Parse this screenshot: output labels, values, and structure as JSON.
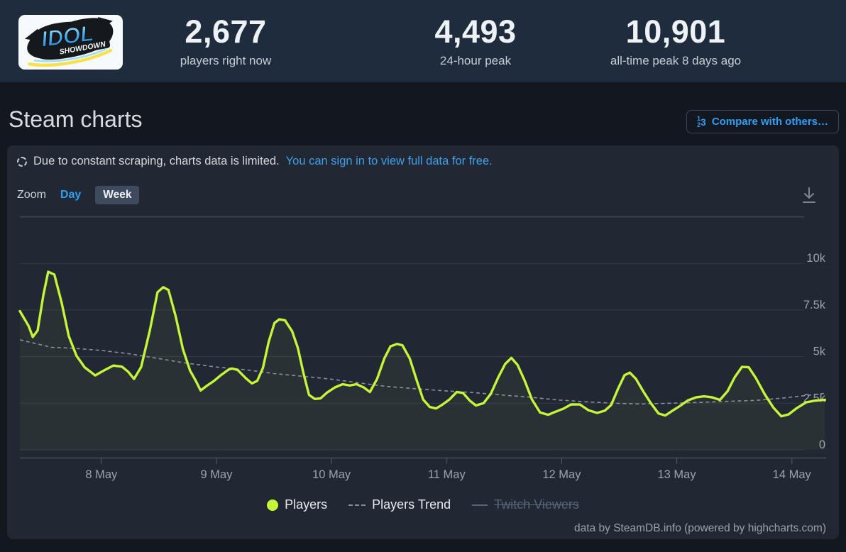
{
  "header": {
    "logo_line1": "IDOL",
    "logo_line2": "SHOWDOWN",
    "stats": [
      {
        "value": "2,677",
        "label": "players right now"
      },
      {
        "value": "4,493",
        "label": "24-hour peak"
      },
      {
        "value": "10,901",
        "label": "all-time peak 8 days ago"
      }
    ]
  },
  "page": {
    "title": "Steam charts",
    "compare_button": "Compare with others…",
    "compare_icon": [
      "1",
      "2",
      "3"
    ]
  },
  "notice": {
    "text": "Due to constant scraping, charts data is limited.",
    "link": "You can sign in to view full data for free."
  },
  "controls": {
    "zoom_label": "Zoom",
    "day": "Day",
    "week": "Week"
  },
  "credit": "data by SteamDB.info (powered by highcharts.com)",
  "chart_data": {
    "type": "line",
    "title": "",
    "xlabel": "",
    "ylabel": "",
    "grid": true,
    "legend_position": "bottom-center",
    "x_axis": {
      "unit": "hours since 7 May 00:00",
      "range_hours": [
        7,
        175
      ],
      "ticks": [
        {
          "t": 24,
          "label": "8 May"
        },
        {
          "t": 48,
          "label": "9 May"
        },
        {
          "t": 72,
          "label": "10 May"
        },
        {
          "t": 96,
          "label": "11 May"
        },
        {
          "t": 120,
          "label": "12 May"
        },
        {
          "t": 144,
          "label": "13 May"
        },
        {
          "t": 168,
          "label": "14 May"
        }
      ]
    },
    "y_axis": {
      "range": [
        0,
        12700
      ],
      "ticks": [
        {
          "v": 0,
          "label": "0"
        },
        {
          "v": 2500,
          "label": "2.5k"
        },
        {
          "v": 5000,
          "label": "5k"
        },
        {
          "v": 7500,
          "label": "7.5k"
        },
        {
          "v": 10000,
          "label": "10k"
        },
        {
          "v": 12500,
          "label": ""
        }
      ]
    },
    "series": [
      {
        "name": "Players",
        "color": "#c5f53a",
        "style": "solid",
        "visible": true,
        "points": [
          [
            7.0,
            7440
          ],
          [
            8.8,
            6650
          ],
          [
            9.7,
            6050
          ],
          [
            10.7,
            6400
          ],
          [
            11.9,
            8300
          ],
          [
            12.9,
            9550
          ],
          [
            14.2,
            9400
          ],
          [
            15.7,
            7900
          ],
          [
            17.2,
            6100
          ],
          [
            18.8,
            5050
          ],
          [
            20.5,
            4430
          ],
          [
            22.7,
            3990
          ],
          [
            24.7,
            4280
          ],
          [
            26.5,
            4520
          ],
          [
            28.3,
            4460
          ],
          [
            29.6,
            4180
          ],
          [
            30.8,
            3800
          ],
          [
            32.3,
            4450
          ],
          [
            34.1,
            6400
          ],
          [
            35.7,
            8450
          ],
          [
            36.9,
            8720
          ],
          [
            38.0,
            8570
          ],
          [
            39.5,
            7150
          ],
          [
            41.0,
            5400
          ],
          [
            42.5,
            4250
          ],
          [
            43.7,
            3700
          ],
          [
            44.7,
            3180
          ],
          [
            46.0,
            3440
          ],
          [
            47.4,
            3680
          ],
          [
            48.8,
            3980
          ],
          [
            50.5,
            4300
          ],
          [
            51.2,
            4360
          ],
          [
            52.4,
            4290
          ],
          [
            54.2,
            3820
          ],
          [
            55.4,
            3560
          ],
          [
            56.5,
            3700
          ],
          [
            57.7,
            4400
          ],
          [
            58.9,
            5800
          ],
          [
            60.1,
            6800
          ],
          [
            61.1,
            7000
          ],
          [
            62.3,
            6950
          ],
          [
            63.8,
            6350
          ],
          [
            65.0,
            5450
          ],
          [
            66.1,
            4150
          ],
          [
            67.3,
            2950
          ],
          [
            68.5,
            2730
          ],
          [
            69.7,
            2760
          ],
          [
            71.0,
            3060
          ],
          [
            72.7,
            3350
          ],
          [
            74.3,
            3520
          ],
          [
            75.8,
            3450
          ],
          [
            77.2,
            3520
          ],
          [
            78.7,
            3350
          ],
          [
            80.0,
            3100
          ],
          [
            81.5,
            3800
          ],
          [
            83.0,
            4900
          ],
          [
            84.3,
            5550
          ],
          [
            85.7,
            5680
          ],
          [
            86.8,
            5600
          ],
          [
            88.3,
            4900
          ],
          [
            89.8,
            3700
          ],
          [
            91.1,
            2700
          ],
          [
            92.5,
            2300
          ],
          [
            93.8,
            2220
          ],
          [
            95.1,
            2420
          ],
          [
            96.6,
            2700
          ],
          [
            98.1,
            3100
          ],
          [
            99.4,
            3050
          ],
          [
            100.8,
            2650
          ],
          [
            102.1,
            2380
          ],
          [
            103.7,
            2500
          ],
          [
            105.2,
            3000
          ],
          [
            106.8,
            3900
          ],
          [
            108.2,
            4600
          ],
          [
            109.5,
            4930
          ],
          [
            110.8,
            4550
          ],
          [
            112.3,
            3700
          ],
          [
            113.8,
            2700
          ],
          [
            115.5,
            2000
          ],
          [
            117.2,
            1880
          ],
          [
            118.8,
            2050
          ],
          [
            120.3,
            2200
          ],
          [
            122.0,
            2440
          ],
          [
            123.8,
            2430
          ],
          [
            125.6,
            2120
          ],
          [
            127.4,
            1980
          ],
          [
            129.0,
            2100
          ],
          [
            130.3,
            2400
          ],
          [
            131.8,
            3300
          ],
          [
            133.1,
            4000
          ],
          [
            134.2,
            4140
          ],
          [
            135.5,
            3800
          ],
          [
            137.1,
            3100
          ],
          [
            138.6,
            2500
          ],
          [
            140.2,
            1950
          ],
          [
            141.6,
            1840
          ],
          [
            143.0,
            2080
          ],
          [
            144.7,
            2360
          ],
          [
            146.3,
            2650
          ],
          [
            148.1,
            2820
          ],
          [
            149.7,
            2870
          ],
          [
            151.3,
            2820
          ],
          [
            153.0,
            2680
          ],
          [
            154.6,
            3150
          ],
          [
            156.1,
            3900
          ],
          [
            157.6,
            4450
          ],
          [
            159.0,
            4430
          ],
          [
            160.5,
            3850
          ],
          [
            162.3,
            3000
          ],
          [
            164.1,
            2280
          ],
          [
            165.8,
            1800
          ],
          [
            167.3,
            1900
          ],
          [
            169.1,
            2250
          ],
          [
            171.0,
            2550
          ],
          [
            172.9,
            2640
          ],
          [
            174.9,
            2677
          ]
        ]
      },
      {
        "name": "Players Trend",
        "color": "#8b9196",
        "style": "dashed",
        "visible": true,
        "points": [
          [
            7.0,
            5900
          ],
          [
            13.6,
            5500
          ],
          [
            18.1,
            5450
          ],
          [
            24.0,
            5330
          ],
          [
            29.9,
            5150
          ],
          [
            35.8,
            4900
          ],
          [
            41.7,
            4650
          ],
          [
            48.0,
            4440
          ],
          [
            53.9,
            4300
          ],
          [
            59.8,
            4100
          ],
          [
            65.7,
            3950
          ],
          [
            71.6,
            3800
          ],
          [
            77.5,
            3600
          ],
          [
            83.4,
            3400
          ],
          [
            89.4,
            3280
          ],
          [
            95.3,
            3170
          ],
          [
            101.2,
            3080
          ],
          [
            107.1,
            2950
          ],
          [
            113.0,
            2830
          ],
          [
            119.0,
            2680
          ],
          [
            124.9,
            2580
          ],
          [
            130.8,
            2500
          ],
          [
            136.7,
            2460
          ],
          [
            142.6,
            2500
          ],
          [
            148.5,
            2540
          ],
          [
            154.4,
            2600
          ],
          [
            160.4,
            2650
          ],
          [
            166.3,
            2780
          ],
          [
            172.2,
            2950
          ],
          [
            174.9,
            3030
          ]
        ]
      },
      {
        "name": "Twitch Viewers",
        "color": "#56667a",
        "style": "solid",
        "visible": false,
        "points": []
      }
    ],
    "legend": [
      {
        "label": "Players",
        "marker": "circle",
        "color": "#c5f53a",
        "enabled": true
      },
      {
        "label": "Players Trend",
        "marker": "dashes",
        "color": "#8b9196",
        "enabled": true
      },
      {
        "label": "Twitch Viewers",
        "marker": "line",
        "color": "#56667a",
        "enabled": false
      }
    ]
  }
}
